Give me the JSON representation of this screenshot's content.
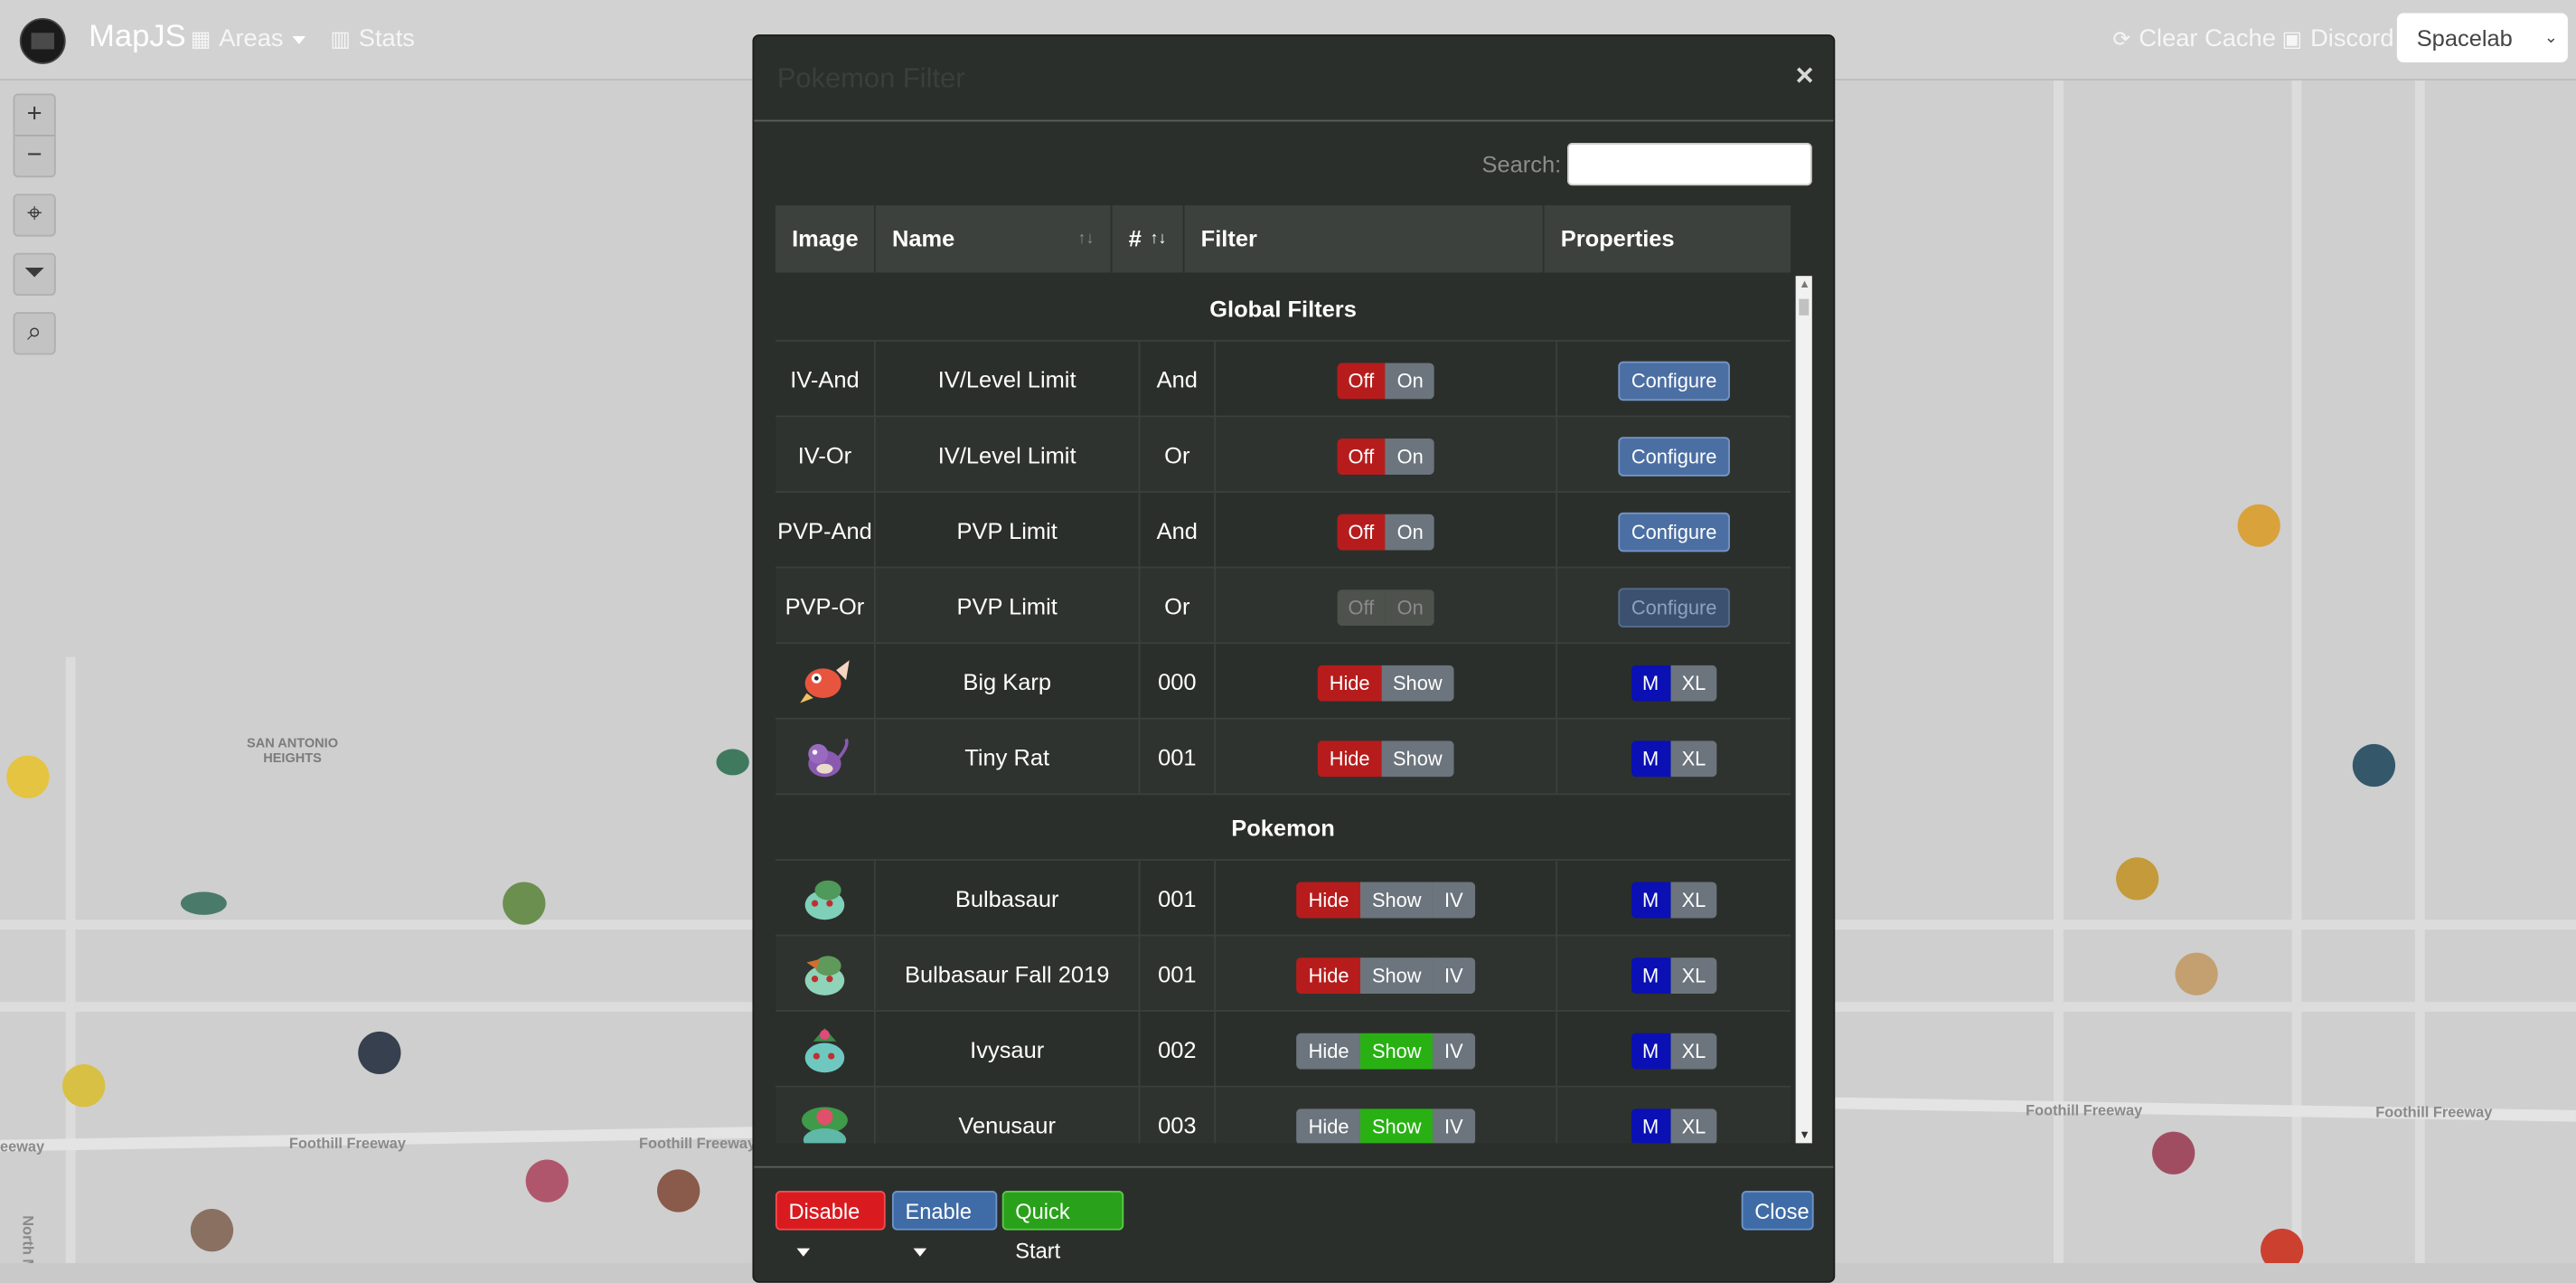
{
  "navbar": {
    "brand": "MapJS",
    "areas_label": "Areas",
    "stats_label": "Stats",
    "clear_cache_label": "Clear Cache",
    "discord_label": "Discord",
    "style_select_value": "Spacelab"
  },
  "map": {
    "place_label": "SAN ANTONIO HEIGHTS",
    "freeway_labels": [
      "Foothill Freeway",
      "Foothill Freeway",
      "Foothill Freeway",
      "Foothill Freeway"
    ],
    "street_label": "North Mou...",
    "left_label": "eeway"
  },
  "modal": {
    "title": "Pokemon Filter",
    "close_glyph": "×",
    "search_label": "Search:",
    "search_value": "",
    "columns": [
      "Image",
      "Name",
      "#",
      "Filter",
      "Properties"
    ],
    "section_global": "Global Filters",
    "section_pokemon": "Pokemon",
    "global_rows": [
      {
        "image": "IV-And",
        "name": "IV/Level Limit",
        "num": "And",
        "off": "Off",
        "on": "On",
        "configure": "Configure"
      },
      {
        "image": "IV-Or",
        "name": "IV/Level Limit",
        "num": "Or",
        "off": "Off",
        "on": "On",
        "configure": "Configure"
      },
      {
        "image": "PVP-And",
        "name": "PVP Limit",
        "num": "And",
        "off": "Off",
        "on": "On",
        "configure": "Configure"
      },
      {
        "image": "PVP-Or",
        "name": "PVP Limit",
        "num": "Or",
        "off": "Off",
        "on": "On",
        "configure": "Configure"
      }
    ],
    "size_rows": [
      {
        "name": "Big Karp",
        "num": "000",
        "hide": "Hide",
        "show": "Show",
        "m": "M",
        "xl": "XL"
      },
      {
        "name": "Tiny Rat",
        "num": "001",
        "hide": "Hide",
        "show": "Show",
        "m": "M",
        "xl": "XL"
      }
    ],
    "pokemon_rows": [
      {
        "name": "Bulbasaur",
        "num": "001",
        "hide": "Hide",
        "show": "Show",
        "iv": "IV",
        "m": "M",
        "xl": "XL",
        "state": "hide"
      },
      {
        "name": "Bulbasaur Fall 2019",
        "num": "001",
        "hide": "Hide",
        "show": "Show",
        "iv": "IV",
        "m": "M",
        "xl": "XL",
        "state": "hide"
      },
      {
        "name": "Ivysaur",
        "num": "002",
        "hide": "Hide",
        "show": "Show",
        "iv": "IV",
        "m": "M",
        "xl": "XL",
        "state": "show"
      },
      {
        "name": "Venusaur",
        "num": "003",
        "hide": "Hide",
        "show": "Show",
        "iv": "IV",
        "m": "M",
        "xl": "XL",
        "state": "show"
      }
    ],
    "footer": {
      "disable_label": "Disable",
      "enable_label": "Enable",
      "quick_start_label": "Quick Start",
      "close_label": "Close"
    }
  },
  "colors": {
    "hide_red": "#b71c1c",
    "show_green": "#29b114",
    "size_blue": "#0a10b4",
    "configure_blue": "#4b6fa3"
  }
}
